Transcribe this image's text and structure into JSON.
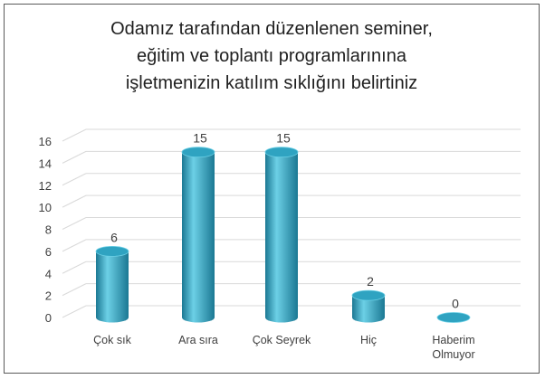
{
  "chart_data": {
    "type": "bar",
    "title": "Odamız tarafından düzenlenen seminer,\neğitim ve toplantı programlarınına\nişletmenizin katılım sıklığını belirtiniz",
    "categories": [
      "Çok sık",
      "Ara sıra",
      "Çok Seyrek",
      "Hiç",
      "Haberim\nOlmuyor"
    ],
    "series": [
      {
        "values": [
          6,
          15,
          15,
          2,
          0
        ]
      }
    ],
    "data_labels": [
      "6",
      "15",
      "15",
      "2",
      "0"
    ],
    "y_ticks": [
      "0",
      "2",
      "4",
      "6",
      "8",
      "10",
      "12",
      "14",
      "16"
    ],
    "ylim": [
      0,
      16
    ],
    "grid": true,
    "legend": "none",
    "bar_color": "#2fa3c1",
    "bar_shade_color": "#1b7893",
    "bar_light_color": "#6cd0e6",
    "grid_color": "#d9d9d9",
    "text_color": "#404040"
  }
}
